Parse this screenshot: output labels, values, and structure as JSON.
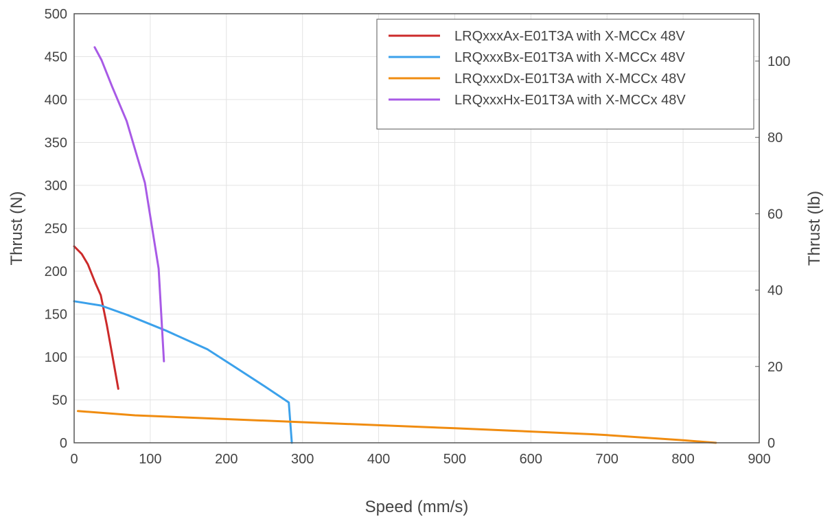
{
  "chart_data": {
    "type": "line",
    "xlabel": "Speed (mm/s)",
    "ylabel": "Thrust (N)",
    "y2label": "Thrust (lb)",
    "xlim": [
      0,
      900
    ],
    "ylim": [
      0,
      500
    ],
    "y2lim": [
      0,
      112.4
    ],
    "xticks": [
      0,
      100,
      200,
      300,
      400,
      500,
      600,
      700,
      800,
      900
    ],
    "yticks": [
      0,
      50,
      100,
      150,
      200,
      250,
      300,
      350,
      400,
      450,
      500
    ],
    "y2ticks": [
      0,
      20,
      40,
      60,
      80,
      100
    ],
    "grid": true,
    "legend_position": "top-right",
    "series": [
      {
        "name": "LRQxxxAx-E01T3A with X-MCCx 48V",
        "color": "#cc2a2a",
        "x": [
          0,
          10,
          18,
          28,
          35,
          43,
          50,
          58
        ],
        "y": [
          229,
          220,
          208,
          186,
          172,
          137,
          103,
          63
        ]
      },
      {
        "name": "LRQxxxBx-E01T3A with X-MCCx 48V",
        "color": "#3ba1eb",
        "x": [
          0,
          35,
          70,
          120,
          175,
          210,
          250,
          282,
          286
        ],
        "y": [
          165,
          160,
          149,
          131,
          109,
          89,
          66,
          47,
          0
        ]
      },
      {
        "name": "LRQxxxDx-E01T3A with X-MCCx 48V",
        "color": "#f08c10",
        "x": [
          5,
          80,
          300,
          500,
          680,
          700,
          800,
          843
        ],
        "y": [
          37,
          32,
          24,
          17,
          10,
          9,
          3,
          0
        ]
      },
      {
        "name": "LRQxxxHx-E01T3A with X-MCCx 48V",
        "color": "#a85ae6",
        "x": [
          27,
          36,
          50,
          69,
          93,
          111,
          118
        ],
        "y": [
          461,
          446,
          415,
          375,
          303,
          203,
          95
        ]
      }
    ]
  }
}
